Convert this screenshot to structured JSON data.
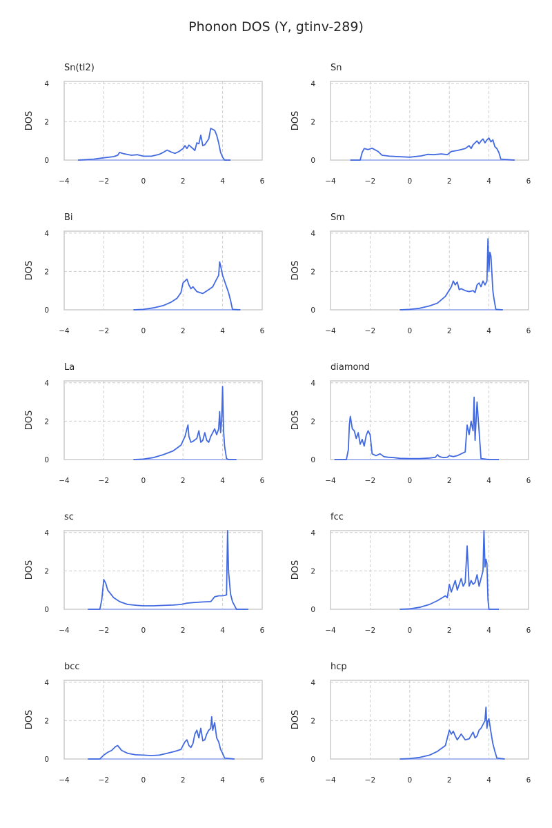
{
  "figure": {
    "title": "Phonon DOS (Y, gtinv-289)"
  },
  "colors": {
    "line": "#4169e1",
    "fill": "#aab7ee",
    "grid": "#cccccc",
    "spine": "#cccccc",
    "text": "#262626"
  },
  "chart_data": [
    {
      "type": "line",
      "title": "Sn(tI2)",
      "xlabel": "",
      "ylabel": "DOS",
      "xlim": [
        -4,
        6
      ],
      "ylim": [
        0,
        4.1
      ],
      "xticks": [
        "−4",
        "−2",
        "0",
        "2",
        "4",
        "6"
      ],
      "yticks": [
        "0",
        "2",
        "4"
      ],
      "grid": true,
      "x": [
        -3.3,
        -2.5,
        -2.0,
        -1.5,
        -1.3,
        -1.2,
        -1.0,
        -0.6,
        -0.3,
        0.0,
        0.4,
        0.8,
        1.0,
        1.2,
        1.4,
        1.6,
        1.8,
        2.0,
        2.1,
        2.2,
        2.3,
        2.5,
        2.6,
        2.7,
        2.8,
        2.9,
        3.0,
        3.1,
        3.2,
        3.3,
        3.4,
        3.5,
        3.6,
        3.7,
        3.8,
        3.9,
        4.0,
        4.1,
        4.4
      ],
      "y": [
        0,
        0.05,
        0.12,
        0.18,
        0.25,
        0.4,
        0.33,
        0.25,
        0.28,
        0.2,
        0.2,
        0.3,
        0.4,
        0.52,
        0.42,
        0.35,
        0.45,
        0.6,
        0.75,
        0.6,
        0.78,
        0.6,
        0.5,
        0.9,
        0.85,
        1.3,
        0.75,
        0.8,
        0.95,
        1.1,
        1.65,
        1.6,
        1.55,
        1.3,
        0.9,
        0.4,
        0.15,
        0,
        0
      ]
    },
    {
      "type": "line",
      "title": "Sn",
      "xlabel": "",
      "ylabel": "DOS",
      "xlim": [
        -4,
        6
      ],
      "ylim": [
        0,
        4.1
      ],
      "xticks": [
        "−4",
        "−2",
        "0",
        "2",
        "4",
        "6"
      ],
      "yticks": [
        "0",
        "2",
        "4"
      ],
      "grid": true,
      "x": [
        -3.0,
        -2.5,
        -2.4,
        -2.3,
        -2.1,
        -1.9,
        -1.6,
        -1.4,
        -1.0,
        0.0,
        0.6,
        0.9,
        1.2,
        1.6,
        1.9,
        2.1,
        2.4,
        2.6,
        2.8,
        3.0,
        3.1,
        3.2,
        3.3,
        3.4,
        3.5,
        3.6,
        3.7,
        3.8,
        3.9,
        4.0,
        4.1,
        4.2,
        4.3,
        4.4,
        4.5,
        4.6,
        5.3
      ],
      "y": [
        0,
        0,
        0.4,
        0.6,
        0.55,
        0.62,
        0.45,
        0.25,
        0.2,
        0.15,
        0.22,
        0.3,
        0.28,
        0.32,
        0.28,
        0.45,
        0.5,
        0.55,
        0.6,
        0.75,
        0.6,
        0.8,
        0.9,
        1.0,
        0.85,
        1.0,
        1.1,
        0.9,
        1.05,
        1.15,
        0.95,
        1.05,
        0.7,
        0.6,
        0.4,
        0.05,
        0
      ]
    },
    {
      "type": "line",
      "title": "Bi",
      "xlabel": "",
      "ylabel": "DOS",
      "xlim": [
        -4,
        6
      ],
      "ylim": [
        0,
        4.1
      ],
      "xticks": [
        "−4",
        "−2",
        "0",
        "2",
        "4",
        "6"
      ],
      "yticks": [
        "0",
        "2",
        "4"
      ],
      "grid": true,
      "x": [
        -0.5,
        0.0,
        0.5,
        1.0,
        1.4,
        1.7,
        1.9,
        2.0,
        2.1,
        2.2,
        2.3,
        2.4,
        2.5,
        2.7,
        3.0,
        3.3,
        3.5,
        3.6,
        3.7,
        3.8,
        3.85,
        3.9,
        4.0,
        4.2,
        4.3,
        4.4,
        4.5,
        4.9
      ],
      "y": [
        0,
        0.02,
        0.1,
        0.22,
        0.4,
        0.6,
        0.9,
        1.4,
        1.5,
        1.6,
        1.3,
        1.1,
        1.2,
        0.95,
        0.85,
        1.05,
        1.2,
        1.4,
        1.6,
        1.8,
        2.5,
        2.3,
        1.8,
        1.2,
        0.9,
        0.5,
        0.02,
        0
      ]
    },
    {
      "type": "line",
      "title": "Sm",
      "xlabel": "",
      "ylabel": "DOS",
      "xlim": [
        -4,
        6
      ],
      "ylim": [
        0,
        4.1
      ],
      "xticks": [
        "−4",
        "−2",
        "0",
        "2",
        "4",
        "6"
      ],
      "yticks": [
        "0",
        "2",
        "4"
      ],
      "grid": true,
      "x": [
        -0.5,
        0.0,
        0.5,
        1.0,
        1.4,
        1.8,
        2.1,
        2.2,
        2.3,
        2.4,
        2.5,
        2.6,
        2.8,
        3.0,
        3.2,
        3.3,
        3.4,
        3.5,
        3.6,
        3.7,
        3.8,
        3.9,
        3.95,
        4.0,
        4.05,
        4.1,
        4.2,
        4.25,
        4.35,
        4.7
      ],
      "y": [
        0,
        0.02,
        0.08,
        0.2,
        0.35,
        0.7,
        1.2,
        1.5,
        1.3,
        1.45,
        1.05,
        1.1,
        1.0,
        0.95,
        1.0,
        0.9,
        1.3,
        1.4,
        1.2,
        1.5,
        1.3,
        1.5,
        3.7,
        2.0,
        3.0,
        2.8,
        1.0,
        0.6,
        0.02,
        0
      ]
    },
    {
      "type": "line",
      "title": "La",
      "xlabel": "",
      "ylabel": "DOS",
      "xlim": [
        -4,
        6
      ],
      "ylim": [
        0,
        4.1
      ],
      "xticks": [
        "−4",
        "−2",
        "0",
        "2",
        "4",
        "6"
      ],
      "yticks": [
        "0",
        "2",
        "4"
      ],
      "grid": true,
      "x": [
        -0.5,
        0.0,
        0.5,
        1.0,
        1.5,
        1.9,
        2.1,
        2.2,
        2.25,
        2.3,
        2.4,
        2.5,
        2.7,
        2.8,
        2.9,
        3.0,
        3.1,
        3.2,
        3.3,
        3.4,
        3.5,
        3.6,
        3.7,
        3.8,
        3.85,
        3.9,
        3.95,
        4.0,
        4.05,
        4.1,
        4.2,
        4.3,
        4.7
      ],
      "y": [
        0,
        0.02,
        0.1,
        0.25,
        0.45,
        0.75,
        1.2,
        1.6,
        1.8,
        1.2,
        0.9,
        0.95,
        1.1,
        1.5,
        0.9,
        1.0,
        1.4,
        1.0,
        0.9,
        1.2,
        1.4,
        1.6,
        1.3,
        1.6,
        2.5,
        1.4,
        2.0,
        3.8,
        1.5,
        0.7,
        0.05,
        0,
        0
      ]
    },
    {
      "type": "line",
      "title": "diamond",
      "xlabel": "",
      "ylabel": "DOS",
      "xlim": [
        -4,
        6
      ],
      "ylim": [
        0,
        4.1
      ],
      "xticks": [
        "−4",
        "−2",
        "0",
        "2",
        "4",
        "6"
      ],
      "yticks": [
        "0",
        "2",
        "4"
      ],
      "grid": true,
      "x": [
        -3.8,
        -3.2,
        -3.1,
        -3.05,
        -3.0,
        -2.9,
        -2.8,
        -2.7,
        -2.6,
        -2.5,
        -2.4,
        -2.3,
        -2.2,
        -2.1,
        -2.0,
        -1.9,
        -1.7,
        -1.5,
        -1.3,
        -1.1,
        -0.8,
        -0.5,
        0.0,
        0.5,
        1.0,
        1.3,
        1.4,
        1.5,
        1.7,
        1.9,
        2.0,
        2.2,
        2.4,
        2.6,
        2.8,
        2.9,
        3.0,
        3.1,
        3.2,
        3.25,
        3.3,
        3.4,
        3.5,
        3.6,
        4.0,
        4.5
      ],
      "y": [
        0,
        0,
        0.5,
        1.8,
        2.25,
        1.6,
        1.5,
        1.1,
        1.4,
        0.8,
        1.05,
        0.7,
        1.25,
        1.5,
        1.3,
        0.3,
        0.2,
        0.3,
        0.15,
        0.12,
        0.1,
        0.06,
        0.05,
        0.05,
        0.08,
        0.12,
        0.25,
        0.15,
        0.1,
        0.12,
        0.2,
        0.15,
        0.2,
        0.3,
        0.4,
        1.8,
        1.3,
        2.0,
        1.5,
        3.25,
        1.0,
        3.0,
        1.5,
        0.05,
        0,
        0
      ]
    },
    {
      "type": "line",
      "title": "sc",
      "xlabel": "",
      "ylabel": "DOS",
      "xlim": [
        -4,
        6
      ],
      "ylim": [
        0,
        4.1
      ],
      "xticks": [
        "−4",
        "−2",
        "0",
        "2",
        "4",
        "6"
      ],
      "yticks": [
        "0",
        "2",
        "4"
      ],
      "grid": true,
      "x": [
        -2.8,
        -2.2,
        -2.1,
        -2.0,
        -1.9,
        -1.8,
        -1.5,
        -1.2,
        -0.8,
        -0.3,
        0.0,
        0.5,
        1.0,
        1.5,
        1.9,
        2.2,
        2.5,
        3.0,
        3.4,
        3.6,
        3.8,
        4.0,
        4.1,
        4.2,
        4.25,
        4.3,
        4.4,
        4.5,
        4.7,
        5.3
      ],
      "y": [
        0,
        0,
        0.5,
        1.55,
        1.35,
        1.0,
        0.6,
        0.4,
        0.25,
        0.2,
        0.18,
        0.18,
        0.2,
        0.22,
        0.25,
        0.32,
        0.35,
        0.38,
        0.4,
        0.65,
        0.7,
        0.7,
        0.72,
        0.75,
        4.1,
        2.0,
        0.8,
        0.4,
        0,
        0
      ]
    },
    {
      "type": "line",
      "title": "fcc",
      "xlabel": "",
      "ylabel": "DOS",
      "xlim": [
        -4,
        6
      ],
      "ylim": [
        0,
        4.1
      ],
      "xticks": [
        "−4",
        "−2",
        "0",
        "2",
        "4",
        "6"
      ],
      "yticks": [
        "0",
        "2",
        "4"
      ],
      "grid": true,
      "x": [
        -0.5,
        0.0,
        0.5,
        1.0,
        1.4,
        1.8,
        1.9,
        2.0,
        2.1,
        2.2,
        2.3,
        2.4,
        2.5,
        2.6,
        2.7,
        2.8,
        2.9,
        3.0,
        3.1,
        3.2,
        3.3,
        3.4,
        3.5,
        3.6,
        3.7,
        3.75,
        3.8,
        3.85,
        3.9,
        3.95,
        4.0,
        4.5
      ],
      "y": [
        0,
        0.02,
        0.1,
        0.25,
        0.45,
        0.7,
        0.6,
        1.3,
        0.9,
        1.2,
        1.5,
        1.0,
        1.3,
        1.6,
        1.2,
        1.4,
        3.3,
        1.2,
        1.5,
        1.3,
        1.4,
        1.8,
        1.2,
        1.6,
        2.0,
        4.1,
        2.2,
        2.6,
        2.4,
        0.5,
        0,
        0
      ]
    },
    {
      "type": "line",
      "title": "bcc",
      "xlabel": "",
      "ylabel": "DOS",
      "xlim": [
        -4,
        6
      ],
      "ylim": [
        0,
        4.1
      ],
      "xticks": [
        "−4",
        "−2",
        "0",
        "2",
        "4",
        "6"
      ],
      "yticks": [
        "0",
        "2",
        "4"
      ],
      "grid": true,
      "x": [
        -2.8,
        -2.2,
        -2.0,
        -1.8,
        -1.6,
        -1.4,
        -1.3,
        -1.1,
        -0.8,
        -0.4,
        0.0,
        0.4,
        0.8,
        1.2,
        1.6,
        1.9,
        2.0,
        2.1,
        2.2,
        2.3,
        2.4,
        2.5,
        2.6,
        2.7,
        2.8,
        2.9,
        3.0,
        3.1,
        3.2,
        3.3,
        3.4,
        3.45,
        3.5,
        3.6,
        3.7,
        3.8,
        3.9,
        4.0,
        4.1,
        4.6
      ],
      "y": [
        0,
        0,
        0.2,
        0.35,
        0.45,
        0.65,
        0.7,
        0.45,
        0.3,
        0.22,
        0.2,
        0.18,
        0.2,
        0.3,
        0.4,
        0.5,
        0.7,
        0.9,
        1.0,
        0.7,
        0.6,
        0.8,
        1.3,
        1.5,
        1.1,
        1.6,
        0.95,
        1.0,
        1.3,
        1.5,
        1.6,
        2.2,
        1.5,
        1.9,
        1.1,
        0.9,
        0.5,
        0.3,
        0.05,
        0
      ]
    },
    {
      "type": "line",
      "title": "hcp",
      "xlabel": "",
      "ylabel": "DOS",
      "xlim": [
        -4,
        6
      ],
      "ylim": [
        0,
        4.1
      ],
      "xticks": [
        "−4",
        "−2",
        "0",
        "2",
        "4",
        "6"
      ],
      "yticks": [
        "0",
        "2",
        "4"
      ],
      "grid": true,
      "x": [
        -0.5,
        0.0,
        0.5,
        1.0,
        1.4,
        1.8,
        1.95,
        2.0,
        2.1,
        2.2,
        2.3,
        2.4,
        2.6,
        2.8,
        3.0,
        3.2,
        3.3,
        3.4,
        3.5,
        3.6,
        3.7,
        3.8,
        3.85,
        3.9,
        3.95,
        4.0,
        4.1,
        4.2,
        4.3,
        4.4,
        4.8
      ],
      "y": [
        0,
        0.02,
        0.08,
        0.2,
        0.4,
        0.7,
        1.3,
        1.5,
        1.3,
        1.45,
        1.2,
        1.0,
        1.3,
        1.0,
        1.05,
        1.4,
        1.1,
        1.2,
        1.5,
        1.6,
        1.8,
        2.0,
        2.7,
        1.6,
        2.0,
        2.1,
        1.4,
        0.8,
        0.4,
        0.05,
        0
      ]
    }
  ]
}
